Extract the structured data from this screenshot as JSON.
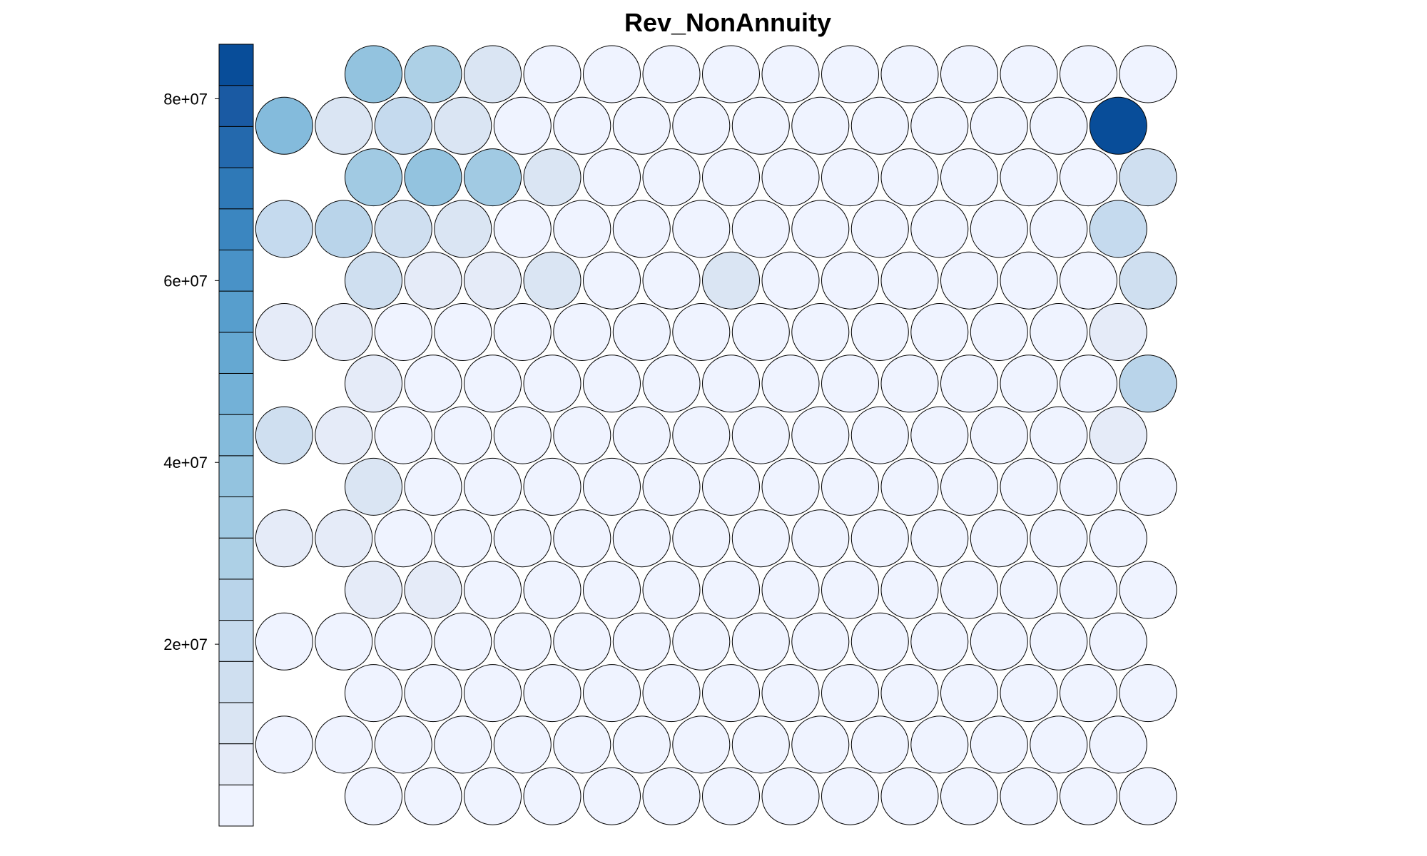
{
  "chart_data": {
    "type": "heatmap",
    "subtype": "som-hexagonal-property-map",
    "title": "Rev_NonAnnuity",
    "grid": {
      "rows": 15,
      "cols": 15,
      "topology": "hexagonal"
    },
    "color_scale": {
      "palette": [
        "#eff3ff",
        "#e5ebf8",
        "#dae5f3",
        "#cfdff0",
        "#c5daee",
        "#b9d4ea",
        "#add0e6",
        "#a1cae3",
        "#93c3df",
        "#84bbdc",
        "#73b1d7",
        "#65a8d2",
        "#579ecd",
        "#4992c7",
        "#3b86c0",
        "#2f79b7",
        "#2469ad",
        "#1a5aa3",
        "#084d99"
      ],
      "min": 0,
      "max": 86000000,
      "ticks": [
        {
          "value": 20000000,
          "label": "2e+07"
        },
        {
          "value": 40000000,
          "label": "4e+07"
        },
        {
          "value": 60000000,
          "label": "6e+07"
        },
        {
          "value": 80000000,
          "label": "8e+07"
        }
      ]
    },
    "values": [
      [
        0,
        40000000,
        30000000,
        10000000,
        0,
        0,
        0,
        0,
        0,
        0,
        0,
        0,
        0,
        0,
        0
      ],
      [
        45000000,
        10000000,
        20000000,
        10000000,
        0,
        0,
        0,
        0,
        0,
        0,
        0,
        0,
        0,
        0,
        86000000
      ],
      [
        0,
        35000000,
        38000000,
        35000000,
        10000000,
        0,
        0,
        0,
        0,
        0,
        0,
        0,
        0,
        0,
        15000000
      ],
      [
        20000000,
        25000000,
        15000000,
        10000000,
        0,
        0,
        0,
        0,
        0,
        0,
        0,
        0,
        0,
        0,
        20000000
      ],
      [
        0,
        15000000,
        7000000,
        7000000,
        10000000,
        0,
        0,
        10000000,
        0,
        0,
        0,
        0,
        0,
        0,
        15000000
      ],
      [
        5000000,
        5000000,
        0,
        0,
        0,
        0,
        0,
        0,
        0,
        0,
        0,
        0,
        0,
        0,
        5000000
      ],
      [
        0,
        5000000,
        0,
        0,
        0,
        0,
        0,
        0,
        0,
        0,
        0,
        0,
        0,
        0,
        25000000
      ],
      [
        15000000,
        5000000,
        0,
        0,
        0,
        0,
        0,
        0,
        0,
        0,
        0,
        0,
        0,
        0,
        5000000
      ],
      [
        0,
        12000000,
        0,
        0,
        0,
        0,
        0,
        0,
        0,
        0,
        0,
        0,
        0,
        0,
        0
      ],
      [
        5000000,
        5000000,
        0,
        0,
        0,
        0,
        0,
        0,
        0,
        0,
        0,
        0,
        0,
        0,
        0
      ],
      [
        0,
        5000000,
        5000000,
        0,
        0,
        0,
        0,
        0,
        0,
        0,
        0,
        0,
        0,
        0,
        0
      ],
      [
        0,
        0,
        0,
        0,
        0,
        0,
        0,
        0,
        0,
        0,
        0,
        0,
        0,
        0,
        0
      ],
      [
        0,
        0,
        0,
        0,
        0,
        0,
        0,
        0,
        0,
        0,
        0,
        0,
        0,
        0,
        0
      ],
      [
        0,
        0,
        0,
        0,
        0,
        0,
        0,
        0,
        0,
        0,
        0,
        0,
        0,
        0,
        0
      ],
      [
        0,
        0,
        0,
        0,
        0,
        0,
        0,
        0,
        0,
        0,
        0,
        0,
        0,
        0,
        0
      ]
    ],
    "mask": [
      [
        0,
        1,
        1,
        1,
        1,
        1,
        1,
        1,
        1,
        1,
        1,
        1,
        1,
        1,
        1
      ],
      [
        1,
        1,
        1,
        1,
        1,
        1,
        1,
        1,
        1,
        1,
        1,
        1,
        1,
        1,
        1
      ],
      [
        0,
        1,
        1,
        1,
        1,
        1,
        1,
        1,
        1,
        1,
        1,
        1,
        1,
        1,
        1
      ],
      [
        1,
        1,
        1,
        1,
        1,
        1,
        1,
        1,
        1,
        1,
        1,
        1,
        1,
        1,
        1
      ],
      [
        0,
        1,
        1,
        1,
        1,
        1,
        1,
        1,
        1,
        1,
        1,
        1,
        1,
        1,
        1
      ],
      [
        1,
        1,
        1,
        1,
        1,
        1,
        1,
        1,
        1,
        1,
        1,
        1,
        1,
        1,
        1
      ],
      [
        0,
        1,
        1,
        1,
        1,
        1,
        1,
        1,
        1,
        1,
        1,
        1,
        1,
        1,
        1
      ],
      [
        1,
        1,
        1,
        1,
        1,
        1,
        1,
        1,
        1,
        1,
        1,
        1,
        1,
        1,
        1
      ],
      [
        0,
        1,
        1,
        1,
        1,
        1,
        1,
        1,
        1,
        1,
        1,
        1,
        1,
        1,
        1
      ],
      [
        1,
        1,
        1,
        1,
        1,
        1,
        1,
        1,
        1,
        1,
        1,
        1,
        1,
        1,
        1
      ],
      [
        0,
        1,
        1,
        1,
        1,
        1,
        1,
        1,
        1,
        1,
        1,
        1,
        1,
        1,
        1
      ],
      [
        1,
        1,
        1,
        1,
        1,
        1,
        1,
        1,
        1,
        1,
        1,
        1,
        1,
        1,
        1
      ],
      [
        0,
        1,
        1,
        1,
        1,
        1,
        1,
        1,
        1,
        1,
        1,
        1,
        1,
        1,
        1
      ],
      [
        1,
        1,
        1,
        1,
        1,
        1,
        1,
        1,
        1,
        1,
        1,
        1,
        1,
        1,
        1
      ],
      [
        0,
        1,
        1,
        1,
        1,
        1,
        1,
        1,
        1,
        1,
        1,
        1,
        1,
        1,
        1
      ]
    ],
    "grid_lines": false,
    "legend_placement": "left"
  }
}
